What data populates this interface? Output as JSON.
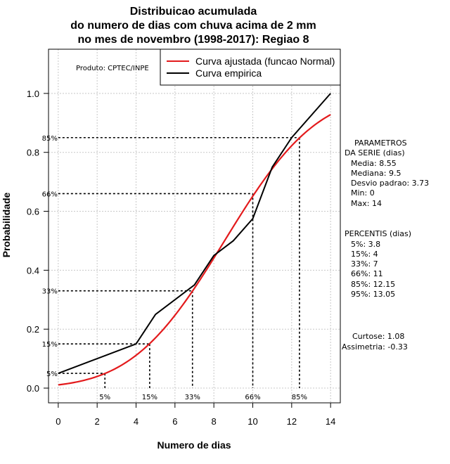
{
  "chart_data": {
    "type": "line",
    "title": [
      "Distribuicao acumulada",
      "do numero de dias com chuva acima de 2 mm",
      "no mes de novembro (1998-2017): Regiao 8"
    ],
    "xlabel": "Numero de dias",
    "ylabel": "Probabilidade",
    "xlim": [
      -0.5,
      14.5
    ],
    "ylim": [
      -0.05,
      1.15
    ],
    "xticks": [
      0,
      2,
      4,
      6,
      8,
      10,
      12,
      14
    ],
    "yticks": [
      0.0,
      0.2,
      0.4,
      0.6,
      0.8,
      1.0
    ],
    "xtick_labels": [
      "0",
      "2",
      "4",
      "6",
      "8",
      "10",
      "12",
      "14"
    ],
    "ytick_labels": [
      "0.0",
      "0.2",
      "0.4",
      "0.6",
      "0.8",
      "1.0"
    ],
    "grid": true,
    "producer_label": "Produto: CPTEC/INPE",
    "legend": {
      "position": "top-right",
      "entries": [
        {
          "label": "Curva ajustada (funcao Normal)",
          "color": "#e31a1c"
        },
        {
          "label": "Curva empirica",
          "color": "#000000"
        }
      ]
    },
    "series": [
      {
        "name": "Curva ajustada (funcao Normal)",
        "color": "#e31a1c",
        "mean": 8.55,
        "sd": 3.73,
        "x_range": [
          0,
          14
        ]
      },
      {
        "name": "Curva empirica",
        "color": "#000000",
        "x": [
          0,
          4,
          5,
          7,
          8,
          9,
          10,
          11,
          12,
          14
        ],
        "values": [
          0.05,
          0.15,
          0.25,
          0.35,
          0.45,
          0.5,
          0.575,
          0.75,
          0.85,
          1.0
        ]
      }
    ],
    "percentile_markers": [
      {
        "label": "5%",
        "prob": 0.05,
        "x": 2.4
      },
      {
        "label": "15%",
        "prob": 0.15,
        "x": 4.7
      },
      {
        "label": "33%",
        "prob": 0.33,
        "x": 6.9
      },
      {
        "label": "66%",
        "prob": 0.66,
        "x": 10.0
      },
      {
        "label": "85%",
        "prob": 0.85,
        "x": 12.4
      }
    ],
    "parametros": {
      "heading": [
        "PARAMETROS",
        "DA SERIE (dias)"
      ],
      "lines": [
        "Media: 8.55",
        "Mediana: 9.5",
        "Desvio padrao: 3.73",
        "Min: 0",
        "Max: 14"
      ]
    },
    "percentis": {
      "heading": "PERCENTIS (dias)",
      "lines": [
        "5%: 3.8",
        "15%: 4",
        "33%: 7",
        "66%: 11",
        "85%: 12.15",
        "95%: 13.05"
      ]
    },
    "stats": [
      "Curtose: 1.08",
      "Assimetria: -0.33"
    ]
  }
}
